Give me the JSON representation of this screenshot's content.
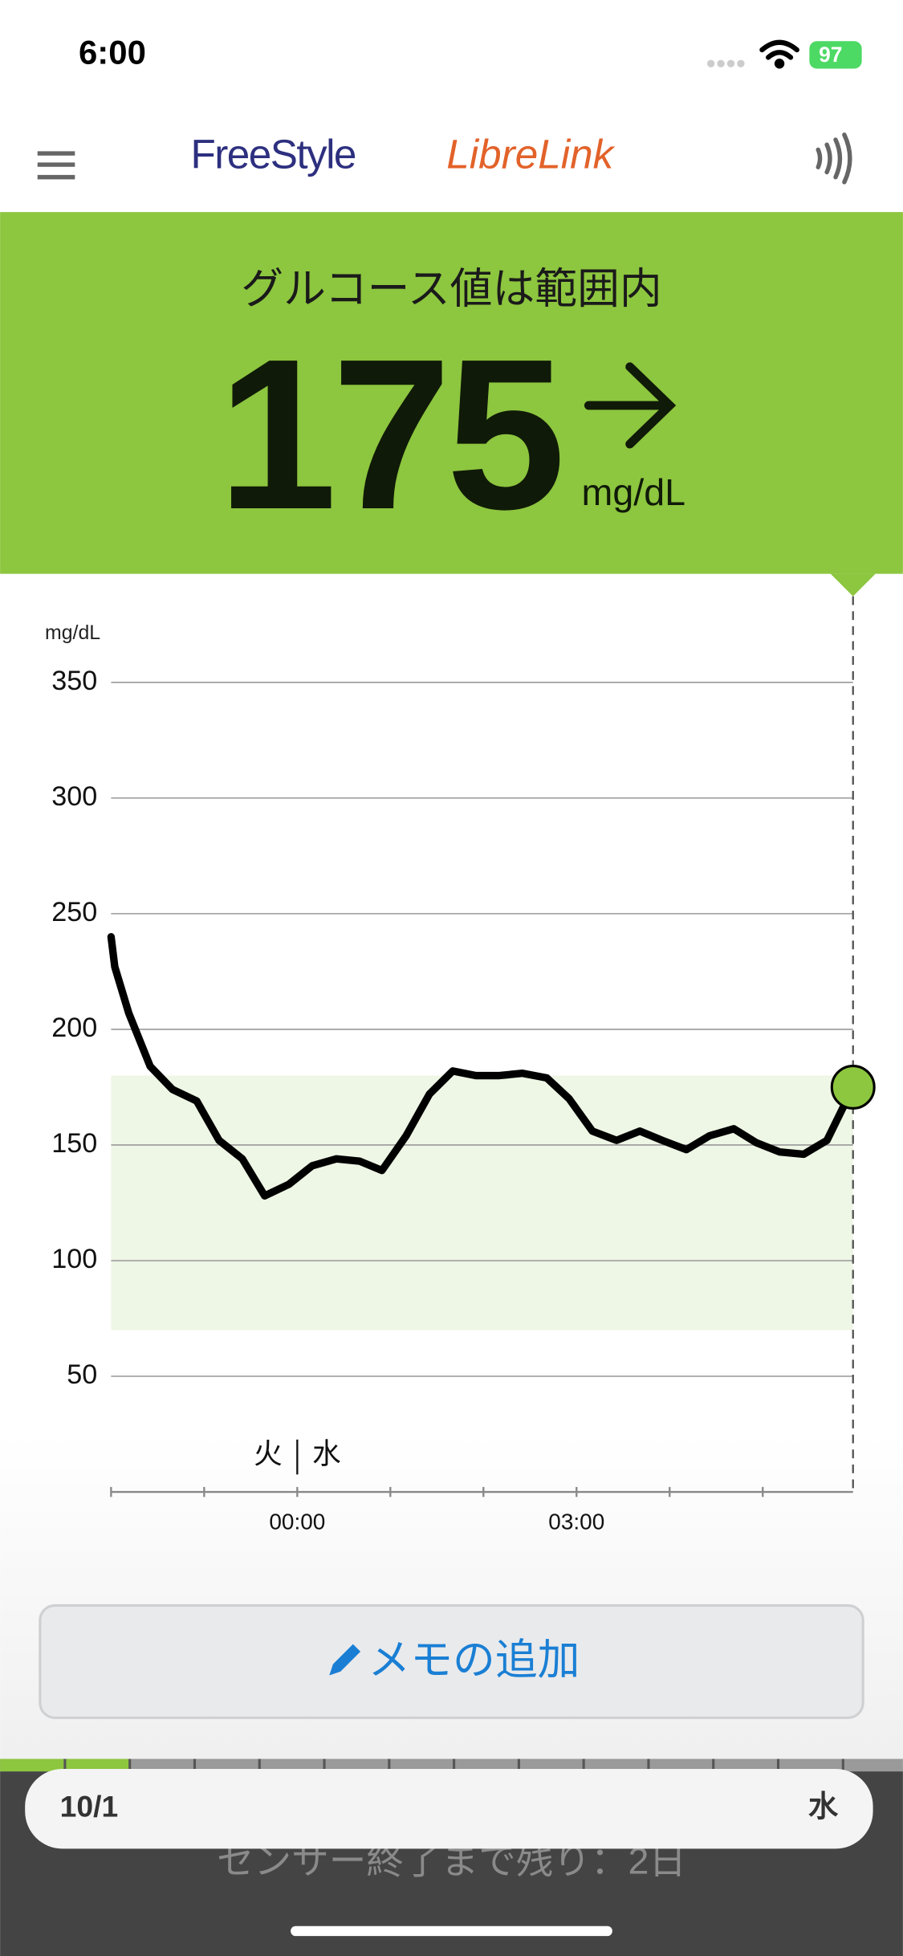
{
  "status": {
    "time": "6:00",
    "battery": "97"
  },
  "header": {
    "logo_left": "FreeStyle",
    "logo_right": "LibreLink"
  },
  "banner": {
    "status": "グルコース値は範囲内",
    "value": 175,
    "unit": "mg/dL"
  },
  "chart_data": {
    "type": "line",
    "y_unit_label": "mg/dL",
    "day_labels": [
      "火",
      "水"
    ],
    "target_range": [
      70,
      180
    ],
    "target_color": "#eef6e5",
    "x": [
      -2.0,
      -1.96,
      -1.81,
      -1.58,
      -1.34,
      -1.08,
      -0.84,
      -0.59,
      -0.35,
      -0.09,
      0.16,
      0.42,
      0.67,
      0.91,
      1.17,
      1.42,
      1.67,
      1.92,
      2.17,
      2.42,
      2.68,
      2.92,
      3.17,
      3.43,
      3.68,
      3.92,
      4.18,
      4.43,
      4.69,
      4.93,
      5.18,
      5.44,
      5.69,
      5.97
    ],
    "series": [
      {
        "color": "#000000",
        "values": [
          240,
          227,
          207,
          184,
          174,
          169,
          152,
          144,
          128,
          133,
          141,
          144,
          143,
          139,
          154,
          172,
          182,
          180,
          180,
          181,
          179,
          170,
          156,
          152,
          156,
          152,
          148,
          154,
          157,
          151,
          147,
          146,
          152,
          175
        ]
      }
    ],
    "current_marker_color": "#8dc63f",
    "xlim": [
      -2,
      5.97
    ],
    "xticks": [
      {
        "value": 0,
        "label": "00:00"
      },
      {
        "value": 3,
        "label": "03:00"
      }
    ],
    "minor_xticks": [
      -2,
      -1,
      1,
      2,
      4,
      5
    ],
    "ylim": [
      0,
      350
    ],
    "yticks": [
      50,
      100,
      150,
      200,
      250,
      300,
      350
    ],
    "grid": true
  },
  "memo_button": "メモの追加",
  "date_bar": {
    "date": "10/1",
    "weekday": "水"
  },
  "sensor_notice": "センサー終了まで残り：2日"
}
